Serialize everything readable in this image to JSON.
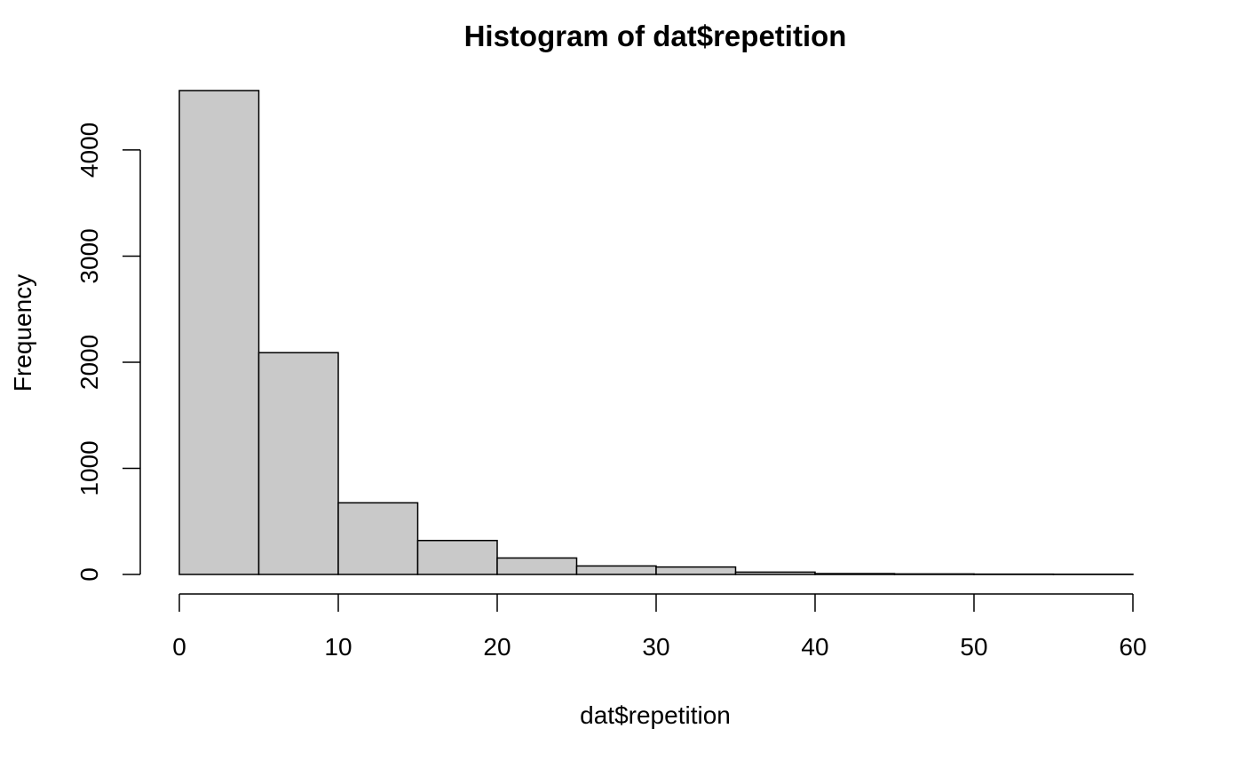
{
  "chart_data": {
    "type": "bar",
    "title": "Histogram of dat$repetition",
    "xlabel": "dat$repetition",
    "ylabel": "Frequency",
    "bin_edges": [
      0,
      5,
      10,
      15,
      20,
      25,
      30,
      35,
      40,
      45,
      50,
      55,
      60
    ],
    "values": [
      4560,
      2090,
      675,
      320,
      155,
      80,
      70,
      22,
      8,
      5,
      3,
      2
    ],
    "xlim": [
      0,
      60
    ],
    "ylim": [
      0,
      4560
    ],
    "x_ticks": [
      0,
      10,
      20,
      30,
      40,
      50,
      60
    ],
    "y_ticks": [
      0,
      1000,
      2000,
      3000,
      4000
    ],
    "grid": false,
    "colors": {
      "bar_fill": "#c9c9c9",
      "bar_stroke": "#000000"
    }
  }
}
